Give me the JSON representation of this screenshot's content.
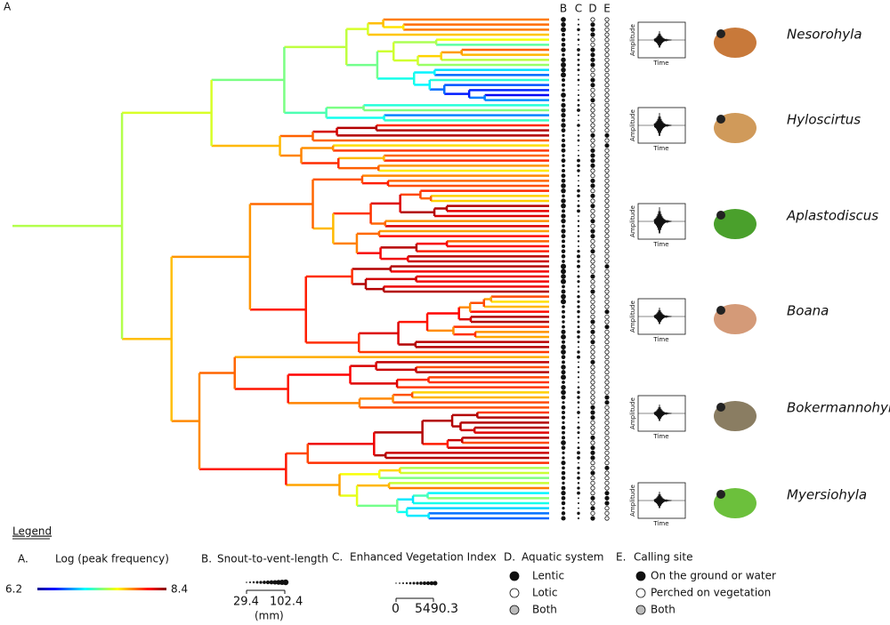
{
  "panel_label": "A",
  "columns": [
    "B",
    "C",
    "D",
    "E"
  ],
  "oscillogram": {
    "y_label": "Amplitude",
    "x_label": "Time"
  },
  "genera": [
    "Nesorohyla",
    "Hyloscirtus",
    "Aplastodiscus",
    "Boana",
    "Bokermannohyla",
    "Myersiohyla"
  ],
  "legend": {
    "title": "Legend",
    "a": {
      "label": "A.",
      "title": "Log (peak frequency)",
      "min": 6.2,
      "max": 8.4
    },
    "b": {
      "label": "B.",
      "title": "Snout-to-vent-length",
      "min": 29.4,
      "max": 102.4,
      "unit": "(mm)"
    },
    "c": {
      "label": "C.",
      "title": "Enhanced Vegetation Index",
      "min": 0,
      "max": 5490.3
    },
    "d": {
      "label": "D.",
      "title": "Aquatic system",
      "items": [
        "Lentic",
        "Lotic",
        "Both"
      ]
    },
    "e": {
      "label": "E.",
      "title": "Calling site",
      "items": [
        "On the ground  or water",
        "Perched on vegetation",
        "Both"
      ]
    }
  }
}
